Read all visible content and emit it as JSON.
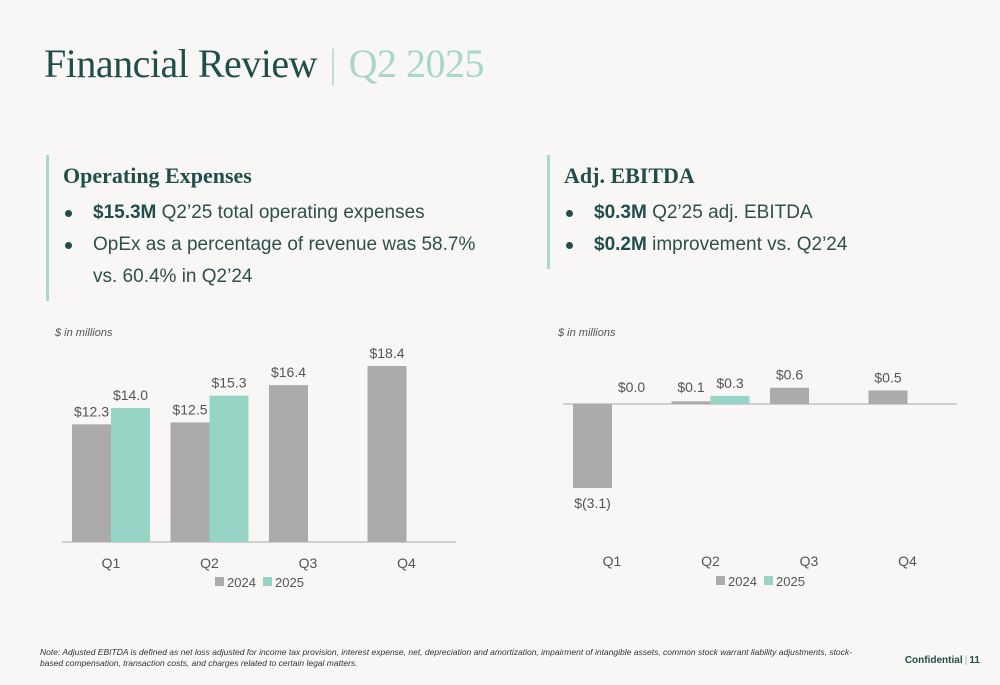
{
  "header": {
    "title": "Financial Review",
    "separator": "|",
    "period": "Q2 2025"
  },
  "left_panel": {
    "heading": "Operating Expenses",
    "bullets": [
      {
        "bold": "$15.3M",
        "text": " Q2’25 total operating expenses"
      },
      {
        "bold": "",
        "text": "OpEx as a percentage of revenue was 58.7% vs. 60.4% in Q2’24"
      }
    ]
  },
  "right_panel": {
    "heading": "Adj. EBITDA",
    "bullets": [
      {
        "bold": "$0.3M",
        "text": " Q2’25 adj. EBITDA"
      },
      {
        "bold": "$0.2M",
        "text": " improvement vs. Q2’24"
      }
    ]
  },
  "colors": {
    "series_2024": "#ababab",
    "series_2025": "#96d4c6",
    "axis": "#cfcfcf",
    "label": "#555555"
  },
  "chart_data": [
    {
      "type": "bar",
      "unit_note": "$ in millions",
      "categories": [
        "Q1",
        "Q2",
        "Q3",
        "Q4"
      ],
      "series": [
        {
          "name": "2024",
          "values": [
            12.3,
            12.5,
            16.4,
            18.4
          ],
          "labels": [
            "$12.3",
            "$12.5",
            "$16.4",
            "$18.4"
          ]
        },
        {
          "name": "2025",
          "values": [
            14.0,
            15.3,
            null,
            null
          ],
          "labels": [
            "$14.0",
            "$15.3",
            "",
            ""
          ]
        }
      ],
      "ylim": [
        0,
        20
      ],
      "legend": "bottom"
    },
    {
      "type": "bar",
      "unit_note": "$ in millions",
      "categories": [
        "Q1",
        "Q2",
        "Q3",
        "Q4"
      ],
      "series": [
        {
          "name": "2024",
          "values": [
            -3.1,
            0.1,
            0.6,
            0.5
          ],
          "labels": [
            "$(3.1)",
            "$0.1",
            "$0.6",
            "$0.5"
          ]
        },
        {
          "name": "2025",
          "values": [
            0.0,
            0.3,
            null,
            null
          ],
          "labels": [
            "$0.0",
            "$0.3",
            "",
            ""
          ]
        }
      ],
      "ylim": [
        -3.5,
        1.5
      ],
      "legend": "bottom"
    }
  ],
  "footer": {
    "note": "Note: Adjusted EBITDA is defined as net loss adjusted for income tax provision, interest expense, net, depreciation and amortization, impairment of intangible assets, common stock warrant liability adjustments, stock-based compensation, transaction costs, and charges related to certain legal matters.",
    "confidential": "Confidential",
    "page": "11"
  }
}
